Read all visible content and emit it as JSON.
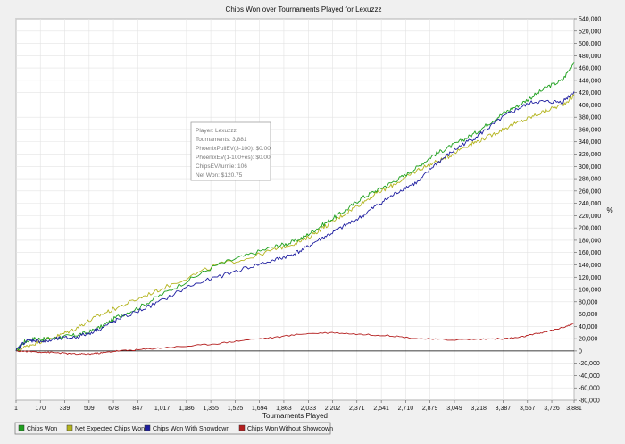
{
  "chart_data": {
    "type": "line",
    "title": "Chips Won over Tournaments Played for  Lexuzzz",
    "xlabel": "Tournaments Played",
    "ylabel": "",
    "right_unit": "%",
    "xlim": [
      1,
      3881
    ],
    "ylim": [
      -80000,
      540000
    ],
    "x_ticks": [
      1,
      170,
      339,
      509,
      678,
      847,
      1017,
      1186,
      1355,
      1525,
      1694,
      1863,
      2033,
      2202,
      2371,
      2541,
      2710,
      2879,
      3049,
      3218,
      3387,
      3557,
      3726,
      3881
    ],
    "x_tick_labels": [
      "1",
      "170",
      "339",
      "509",
      "678",
      "847",
      "1,017",
      "1,186",
      "1,355",
      "1,525",
      "1,694",
      "1,863",
      "2,033",
      "2,202",
      "2,371",
      "2,541",
      "2,710",
      "2,879",
      "3,049",
      "3,218",
      "3,387",
      "3,557",
      "3,726",
      "3,881"
    ],
    "y_ticks": [
      -80000,
      -60000,
      -40000,
      -20000,
      0,
      20000,
      40000,
      60000,
      80000,
      100000,
      120000,
      140000,
      160000,
      180000,
      200000,
      220000,
      240000,
      260000,
      280000,
      300000,
      320000,
      340000,
      360000,
      380000,
      400000,
      420000,
      440000,
      460000,
      480000,
      500000,
      520000,
      540000
    ],
    "y_tick_labels": [
      "-80,000",
      "-60,000",
      "-40,000",
      "-20,000",
      "0",
      "20,000",
      "40,000",
      "60,000",
      "80,000",
      "100,000",
      "120,000",
      "140,000",
      "160,000",
      "180,000",
      "200,000",
      "220,000",
      "240,000",
      "260,000",
      "280,000",
      "300,000",
      "320,000",
      "340,000",
      "360,000",
      "380,000",
      "400,000",
      "420,000",
      "440,000",
      "460,000",
      "480,000",
      "500,000",
      "520,000",
      "540,000"
    ],
    "grid": true,
    "legend_position": "bottom-left",
    "series": [
      {
        "name": "Chips Won",
        "color": "#1ea01e",
        "x": [
          1,
          60,
          130,
          200,
          300,
          400,
          500,
          600,
          700,
          850,
          1000,
          1200,
          1400,
          1600,
          1800,
          1900,
          2000,
          2100,
          2200,
          2300,
          2400,
          2500,
          2600,
          2700,
          2800,
          2900,
          3000,
          3100,
          3200,
          3300,
          3400,
          3500,
          3600,
          3700,
          3800,
          3881
        ],
        "values": [
          0,
          15000,
          20000,
          19000,
          22000,
          25000,
          30000,
          40000,
          55000,
          70000,
          90000,
          115000,
          140000,
          155000,
          170000,
          175000,
          185000,
          200000,
          215000,
          230000,
          248000,
          260000,
          272000,
          285000,
          300000,
          318000,
          330000,
          342000,
          355000,
          372000,
          388000,
          400000,
          415000,
          430000,
          440000,
          470000
        ]
      },
      {
        "name": "Net Expected Chips Won",
        "color": "#b4b41e",
        "x": [
          1,
          100,
          200,
          300,
          400,
          500,
          600,
          700,
          850,
          1000,
          1200,
          1400,
          1600,
          1800,
          1900,
          2000,
          2100,
          2200,
          2300,
          2400,
          2500,
          2600,
          2700,
          2800,
          2900,
          3000,
          3100,
          3200,
          3300,
          3400,
          3500,
          3600,
          3700,
          3800,
          3881
        ],
        "values": [
          0,
          10000,
          18000,
          25000,
          35000,
          48000,
          60000,
          70000,
          85000,
          100000,
          120000,
          140000,
          150000,
          165000,
          172000,
          180000,
          195000,
          210000,
          225000,
          240000,
          255000,
          267000,
          280000,
          295000,
          305000,
          315000,
          330000,
          340000,
          350000,
          362000,
          372000,
          382000,
          392000,
          400000,
          415000
        ]
      },
      {
        "name": "Chips Won With Showdown",
        "color": "#1e1ea0",
        "x": [
          1,
          60,
          130,
          200,
          300,
          400,
          500,
          600,
          700,
          850,
          1000,
          1200,
          1400,
          1600,
          1800,
          1900,
          2000,
          2100,
          2200,
          2300,
          2400,
          2500,
          2600,
          2700,
          2800,
          2900,
          3000,
          3100,
          3200,
          3300,
          3400,
          3500,
          3600,
          3700,
          3800,
          3881
        ],
        "values": [
          0,
          15000,
          18000,
          15000,
          20000,
          22000,
          28000,
          38000,
          50000,
          65000,
          80000,
          105000,
          120000,
          135000,
          148000,
          155000,
          165000,
          180000,
          192000,
          205000,
          218000,
          235000,
          250000,
          265000,
          275000,
          300000,
          318000,
          335000,
          348000,
          365000,
          382000,
          395000,
          405000,
          405000,
          405000,
          422000
        ]
      },
      {
        "name": "Chips Won Without Showdown",
        "color": "#b41e1e",
        "x": [
          1,
          100,
          200,
          300,
          400,
          500,
          600,
          700,
          850,
          1000,
          1200,
          1400,
          1600,
          1800,
          2000,
          2200,
          2400,
          2600,
          2800,
          3000,
          3200,
          3400,
          3500,
          3600,
          3700,
          3800,
          3881
        ],
        "values": [
          0,
          -1000,
          -2000,
          -3000,
          -5000,
          -5000,
          -3000,
          0,
          2000,
          5000,
          8000,
          12000,
          18000,
          22000,
          28000,
          30000,
          27000,
          25000,
          20000,
          18000,
          19000,
          20000,
          22000,
          27000,
          32000,
          38000,
          45000
        ]
      }
    ]
  },
  "info_box": {
    "lines": [
      "Player: Lexuzzz",
      "Tournaments: 3,881",
      "PhoenixPullEV(3-100): $0.00",
      "PhoenixEV(1-100+es): $0.00",
      "ChipsEV/turnie: 106",
      "Net Won: $120.75"
    ]
  },
  "legend": {
    "items": [
      {
        "label": "Chips Won",
        "color": "#1ea01e"
      },
      {
        "label": "Net Expected Chips Won",
        "color": "#b4b41e"
      },
      {
        "label": "Chips Won With Showdown",
        "color": "#1e1ea0"
      },
      {
        "label": "Chips Won Without Showdown",
        "color": "#b41e1e"
      }
    ]
  }
}
